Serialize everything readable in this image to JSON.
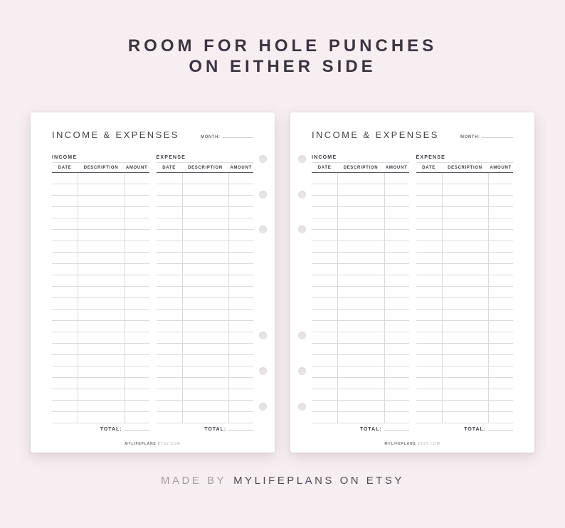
{
  "colors": {
    "background": "#f6eef1",
    "page": "#ffffff",
    "heading_text": "#3b3540",
    "title_text": "#45404a",
    "label_text": "#3f3a44",
    "line_light": "#ddd9dc",
    "line_dark": "#5a555e",
    "hole": "#e7e3e6",
    "caption_prefix": "#a39da3",
    "caption_brand": "#514b55"
  },
  "heading": {
    "line1": "ROOM FOR HOLE PUNCHES",
    "line2": "ON EITHER SIDE"
  },
  "page": {
    "title": "INCOME & EXPENSES",
    "month_label": "MONTH:",
    "income_label": "INCOME",
    "expense_label": "EXPENSE",
    "columns": [
      "DATE",
      "DESCRIPTION",
      "AMOUNT"
    ],
    "row_count": 22,
    "total_label": "TOTAL:",
    "footer_brand": "MYLIFEPLANS",
    "footer_site": "ETSY.COM"
  },
  "caption": {
    "prefix": "MADE BY",
    "brand": "MYLIFEPLANS ON ETSY"
  }
}
